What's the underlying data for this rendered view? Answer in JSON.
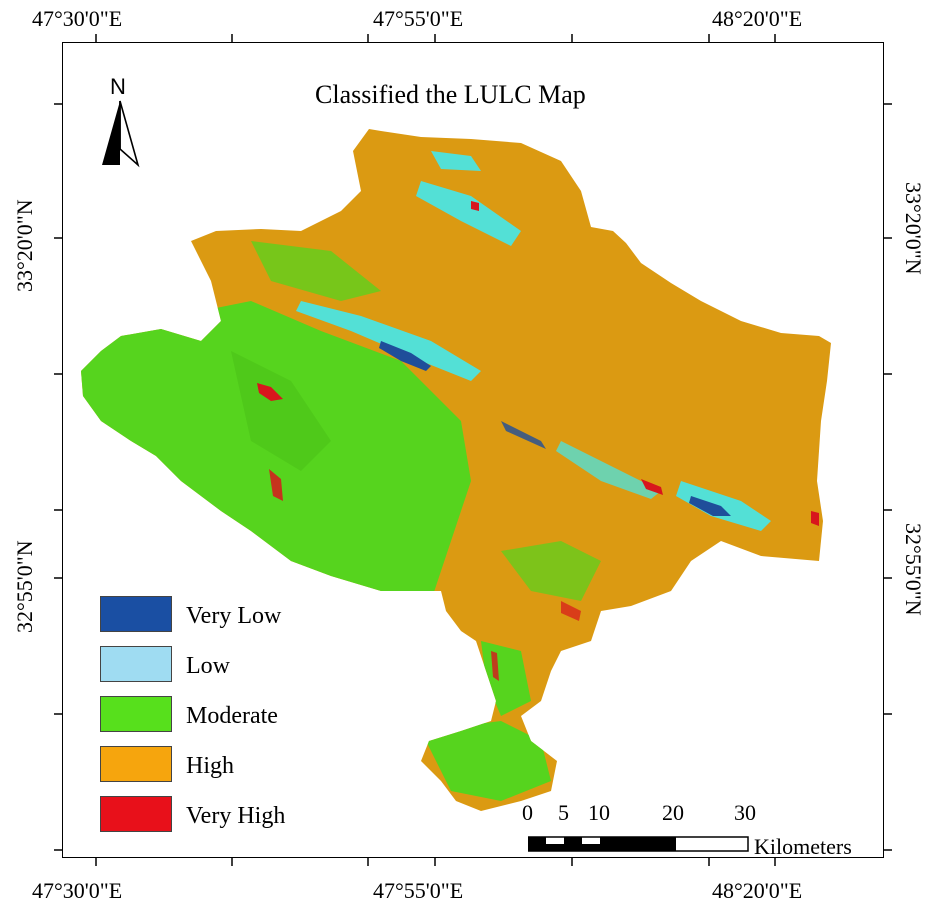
{
  "title": "Classified the LULC Map",
  "north": {
    "label": "N",
    "icon": "north-arrow-icon"
  },
  "coords": {
    "top": [
      "47°30'0\"E",
      "47°55'0\"E",
      "48°20'0\"E"
    ],
    "bottom": [
      "47°30'0\"E",
      "47°55'0\"E",
      "48°20'0\"E"
    ],
    "left": [
      "33°20'0\"N",
      "32°55'0\"N"
    ],
    "right": [
      "33°20'0\"N",
      "32°55'0\"N"
    ]
  },
  "legend": [
    {
      "label": "Very Low",
      "color": "#1a4fa3"
    },
    {
      "label": "Low",
      "color": "#9fdcf2"
    },
    {
      "label": "Moderate",
      "color": "#57e01c"
    },
    {
      "label": "High",
      "color": "#f6a50d"
    },
    {
      "label": "Very High",
      "color": "#e8101a"
    }
  ],
  "map_colors": {
    "high": "#db9a12",
    "moderate": "#56d41e",
    "low": "#53e0d6",
    "very_low": "#1f4e9a",
    "very_high": "#d8161d"
  },
  "scale": {
    "ticks": [
      "0",
      "5",
      "10",
      "20",
      "30"
    ],
    "unit": "Kilometers"
  }
}
